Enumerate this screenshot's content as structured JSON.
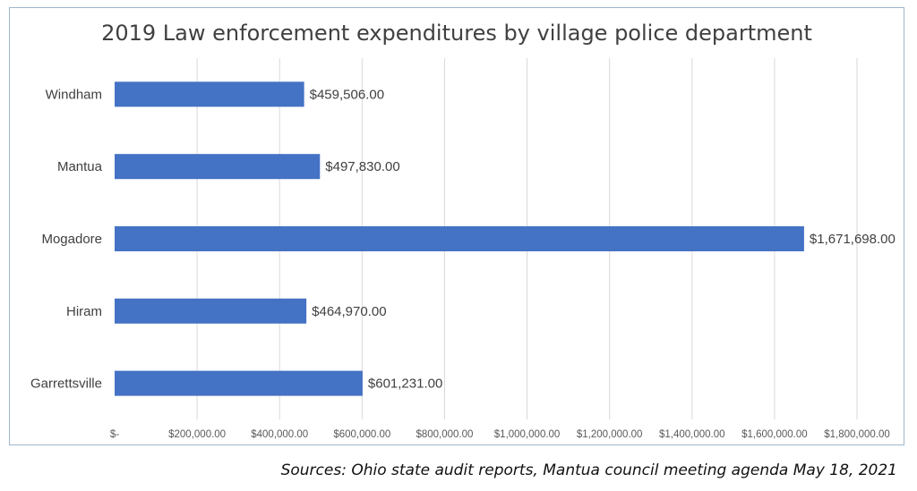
{
  "chart_data": {
    "type": "bar",
    "orientation": "horizontal",
    "title": "2019 Law enforcement expenditures by village police department",
    "categories": [
      "Windham",
      "Mantua",
      "Mogadore",
      "Hiram",
      "Garrettsville"
    ],
    "values": [
      459506.0,
      497830.0,
      1671698.0,
      464970.0,
      601231.0
    ],
    "data_labels": [
      "$459,506.00",
      "$497,830.00",
      "$1,671,698.00",
      "$464,970.00",
      "$601,231.00"
    ],
    "xlim": [
      0,
      1800000
    ],
    "x_ticks": [
      0,
      200000,
      400000,
      600000,
      800000,
      1000000,
      1200000,
      1400000,
      1600000,
      1800000
    ],
    "x_tick_labels": [
      "$-",
      "$200,000.00",
      "$400,000.00",
      "$600,000.00",
      "$800,000.00",
      "$1,000,000.00",
      "$1,200,000.00",
      "$1,400,000.00",
      "$1,600,000.00",
      "$1,800,000.00"
    ],
    "grid": true,
    "legend": "none",
    "bar_color": "#4472c4",
    "grid_color": "#d9d9d9"
  },
  "source_note": "Sources: Ohio state audit reports,  Mantua council meeting agenda May 18, 2021"
}
